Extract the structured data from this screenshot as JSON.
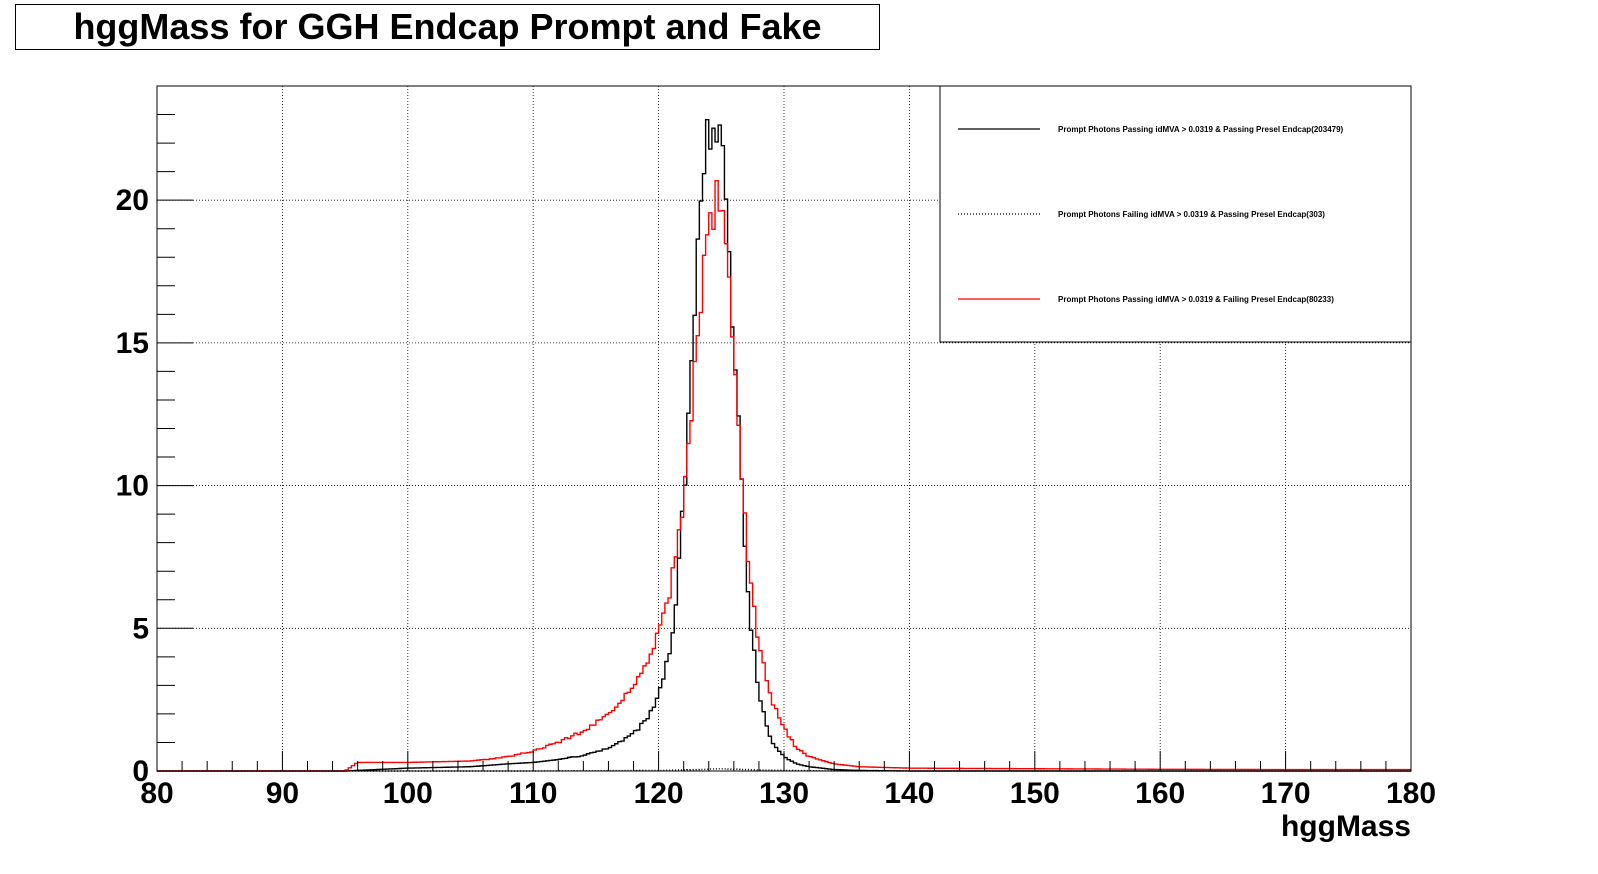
{
  "chart_data": {
    "type": "line",
    "title": "hggMass for GGH Endcap Prompt and Fake",
    "xlabel": "hggMass",
    "ylabel": "",
    "xlim": [
      80,
      180
    ],
    "ylim": [
      0,
      24
    ],
    "x_ticks": [
      80,
      90,
      100,
      110,
      120,
      130,
      140,
      150,
      160,
      170,
      180
    ],
    "y_ticks": [
      0,
      5,
      10,
      15,
      20
    ],
    "grid": true,
    "legend_position": "top-right",
    "series": [
      {
        "name": "Prompt Photons Passing idMVA > 0.0319 & Passing Presel Endcap(203479)",
        "color": "#000000",
        "style": "solid",
        "x": [
          80,
          95,
          100,
          105,
          108,
          110,
          112,
          114,
          116,
          118,
          119,
          120,
          121,
          121.5,
          122,
          122.5,
          123,
          123.5,
          124,
          124.5,
          125,
          125.5,
          126,
          126.5,
          127,
          127.5,
          128,
          128.5,
          129,
          130,
          131,
          132,
          134,
          136,
          140,
          180
        ],
        "y": [
          0,
          0,
          0.1,
          0.15,
          0.25,
          0.3,
          0.4,
          0.55,
          0.8,
          1.3,
          1.8,
          2.6,
          4.5,
          6.5,
          9.5,
          13.0,
          17.5,
          21.0,
          22.5,
          23.0,
          22.0,
          19.5,
          15.0,
          11.0,
          7.0,
          4.5,
          2.8,
          1.8,
          1.0,
          0.5,
          0.25,
          0.15,
          0.05,
          0.02,
          0,
          0
        ]
      },
      {
        "name": "Prompt Photons Failing idMVA > 0.0319 & Passing Presel Endcap(303)",
        "color": "#000000",
        "style": "dotted",
        "x": [
          80,
          110,
          115,
          120,
          123,
          125,
          127,
          130,
          135,
          180
        ],
        "y": [
          0,
          0,
          0.01,
          0.02,
          0.05,
          0.08,
          0.05,
          0.02,
          0,
          0
        ]
      },
      {
        "name": "Prompt Photons Passing idMVA > 0.0319 & Failing Presel Endcap(80233)",
        "color": "#ff0000",
        "style": "solid",
        "x": [
          80,
          95,
          96,
          100,
          105,
          108,
          110,
          112,
          114,
          116,
          117,
          118,
          119,
          120,
          121,
          122,
          122.5,
          123,
          123.5,
          124,
          124.5,
          125,
          125.5,
          126,
          126.5,
          127,
          127.5,
          128,
          129,
          130,
          131,
          132,
          134,
          136,
          140,
          150,
          160,
          170,
          180
        ],
        "y": [
          0,
          0,
          0.3,
          0.3,
          0.35,
          0.5,
          0.7,
          1.0,
          1.4,
          2.0,
          2.5,
          3.0,
          3.8,
          4.8,
          6.5,
          9.5,
          12.0,
          15.0,
          17.0,
          18.5,
          20.0,
          20.5,
          18.0,
          15.0,
          11.5,
          8.0,
          6.0,
          4.5,
          2.5,
          1.5,
          0.8,
          0.5,
          0.25,
          0.15,
          0.1,
          0.08,
          0.06,
          0.05,
          0.05
        ]
      }
    ]
  }
}
